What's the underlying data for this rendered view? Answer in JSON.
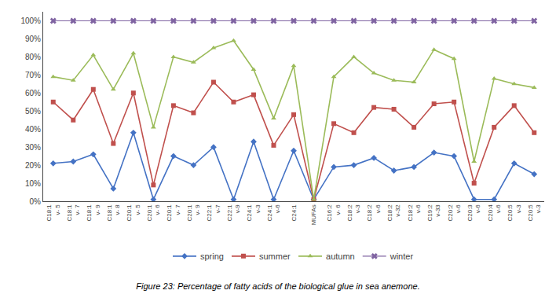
{
  "chart_data": {
    "type": "line",
    "title": "Figure 23: Percentage of fatty acids of the biological glue in sea anemone.",
    "categories": [
      "C18:1\nv- 5",
      "C18:1\nv- 7",
      "C18:1\nv- 9",
      "C18:1\nv- 8",
      "C20:1\nv- 5",
      "C20:1\nv- 6",
      "C20:1\nv- 7",
      "C20:1\nv- 9",
      "C22:1\nv-7",
      "C22:1\nv-9",
      "C24:1\nv-3",
      "C24:1\nv-6",
      "C24:1",
      "MUFAs",
      "C16:2\nv- 6",
      "C18:2\nv-3",
      "C18:2\nv-6",
      "C18:2\nv-32",
      "C18:2\nv-6",
      "C19:2\nv-33",
      "C20:2\nv-6",
      "C20:3\nv-6",
      "C20:4\nv-6",
      "C20:5\nv-3",
      "C20:5\nv-3"
    ],
    "series": [
      {
        "name": "spring",
        "color": "#4472C4",
        "marker": "diamond",
        "values": [
          21,
          22,
          26,
          7,
          38,
          1,
          25,
          20,
          30,
          1,
          33,
          1,
          28,
          1,
          19,
          20,
          24,
          17,
          19,
          27,
          25,
          1,
          1,
          21,
          15
        ]
      },
      {
        "name": "summer",
        "color": "#C0504D",
        "marker": "square",
        "values": [
          55,
          45,
          62,
          32,
          60,
          9,
          53,
          49,
          66,
          55,
          59,
          31,
          48,
          1,
          43,
          38,
          52,
          51,
          41,
          54,
          55,
          10,
          41,
          53,
          38
        ]
      },
      {
        "name": "autumn",
        "color": "#9BBB59",
        "marker": "triangle-up",
        "values": [
          69,
          67,
          81,
          62,
          82,
          41,
          80,
          77,
          85,
          89,
          73,
          46,
          75,
          1,
          69,
          80,
          71,
          67,
          66,
          84,
          79,
          22,
          68,
          65,
          63
        ]
      },
      {
        "name": "winter",
        "color": "#8064A2",
        "marker": "x",
        "values": [
          100,
          100,
          100,
          100,
          100,
          100,
          100,
          100,
          100,
          100,
          100,
          100,
          100,
          100,
          100,
          100,
          100,
          100,
          100,
          100,
          100,
          100,
          100,
          100,
          100
        ]
      }
    ],
    "ylim": [
      0,
      105
    ],
    "yticks": [
      {
        "value": 0,
        "label": "0%"
      },
      {
        "value": 10,
        "label": "10%"
      },
      {
        "value": 20,
        "label": "20%"
      },
      {
        "value": 30,
        "label": "30%"
      },
      {
        "value": 40,
        "label": "40%"
      },
      {
        "value": 50,
        "label": "50%"
      },
      {
        "value": 60,
        "label": "60%"
      },
      {
        "value": 70,
        "label": "70%"
      },
      {
        "value": 80,
        "label": "80%"
      },
      {
        "value": 90,
        "label": "90%"
      },
      {
        "value": 100,
        "label": "100%"
      }
    ],
    "grid": false,
    "legend": "bottom"
  }
}
